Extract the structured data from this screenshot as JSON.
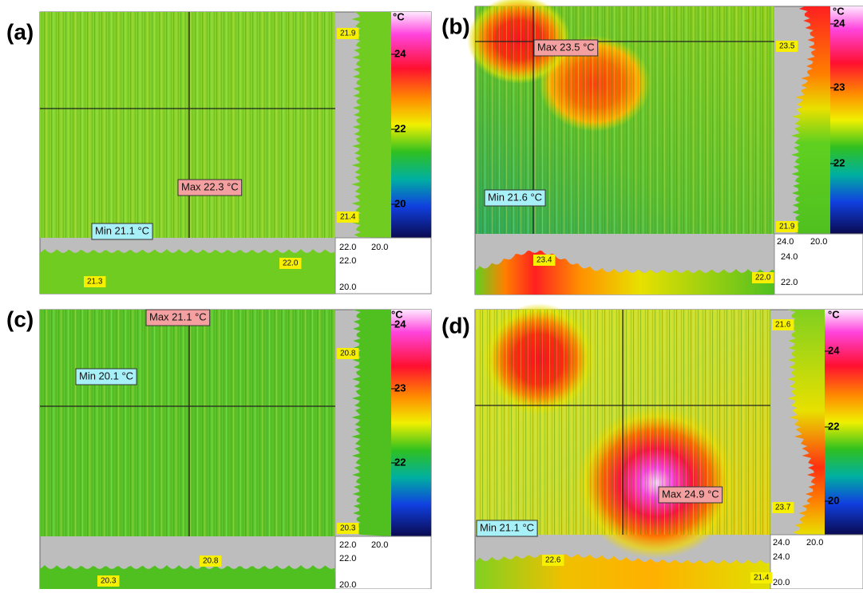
{
  "panels": [
    {
      "label": "(a)",
      "max": "Max 22.3 °C",
      "min": "Min 21.1 °C",
      "unit": "°C",
      "colorbar_ticks": [
        "24",
        "22",
        "20"
      ],
      "right_profile_labels": [
        "21.9",
        "21.4"
      ],
      "right_axis": [
        "22.0",
        "20.0"
      ],
      "bottom_axis": [
        "22.0",
        "20.0"
      ],
      "bottom_profile_labels": [
        "22.0",
        "21.3"
      ]
    },
    {
      "label": "(b)",
      "max": "Max 23.5 °C",
      "min": "Min 21.6 °C",
      "unit": "°C",
      "colorbar_ticks": [
        "24",
        "23",
        "22"
      ],
      "right_profile_labels": [
        "23.5",
        "21.9"
      ],
      "right_axis": [
        "24.0",
        "20.0"
      ],
      "bottom_axis": [
        "24.0",
        "22.0"
      ],
      "bottom_profile_labels": [
        "23.4",
        "22.0"
      ]
    },
    {
      "label": "(c)",
      "max": "Max 21.1 °C",
      "min": "Min 20.1 °C",
      "unit": "°C",
      "colorbar_ticks": [
        "24",
        "23",
        "22"
      ],
      "right_profile_labels": [
        "20.8",
        "20.3"
      ],
      "right_axis": [
        "22.0",
        "20.0"
      ],
      "bottom_axis": [
        "22.0",
        "20.0"
      ],
      "bottom_profile_labels": [
        "20.8",
        "20.3"
      ]
    },
    {
      "label": "(d)",
      "max": "Max 24.9 °C",
      "min": "Min 21.1 °C",
      "unit": "°C",
      "colorbar_ticks": [
        "24",
        "22",
        "20"
      ],
      "right_profile_labels": [
        "21.6",
        "23.7"
      ],
      "right_axis": [
        "24.0",
        "20.0"
      ],
      "bottom_axis": [
        "24.0",
        "20.0"
      ],
      "bottom_profile_labels": [
        "22.6",
        "21.4"
      ]
    }
  ]
}
